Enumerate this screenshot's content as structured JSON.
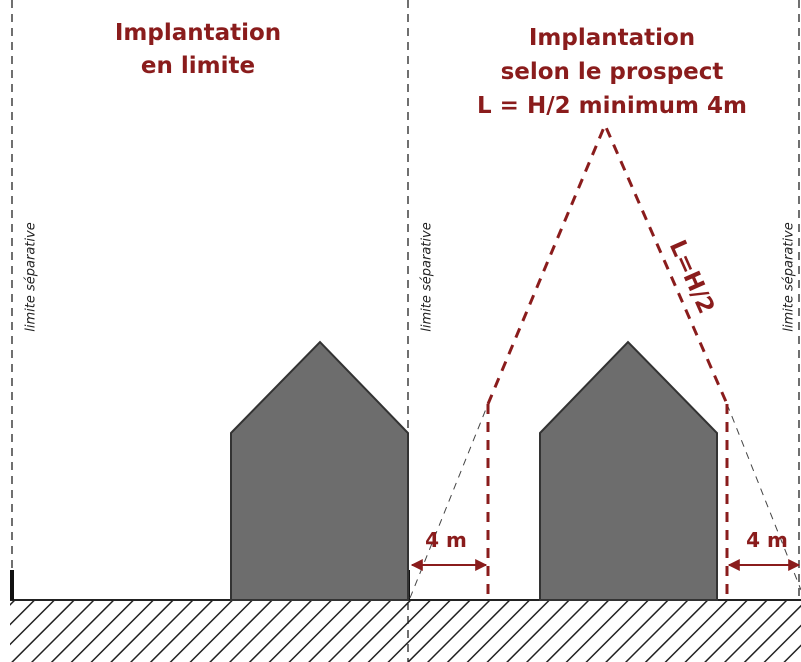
{
  "left_panel": {
    "title_lines": [
      "Implantation",
      "en limite"
    ]
  },
  "right_panel": {
    "title_lines": [
      "Implantation",
      "selon le prospect",
      "L = H/2 minimum 4m"
    ],
    "slope_label": "L=H/2",
    "distance_labels": [
      "4 m",
      "4 m"
    ]
  },
  "boundary_labels": [
    "limite séparative",
    "limite séparative",
    "limite séparative"
  ]
}
